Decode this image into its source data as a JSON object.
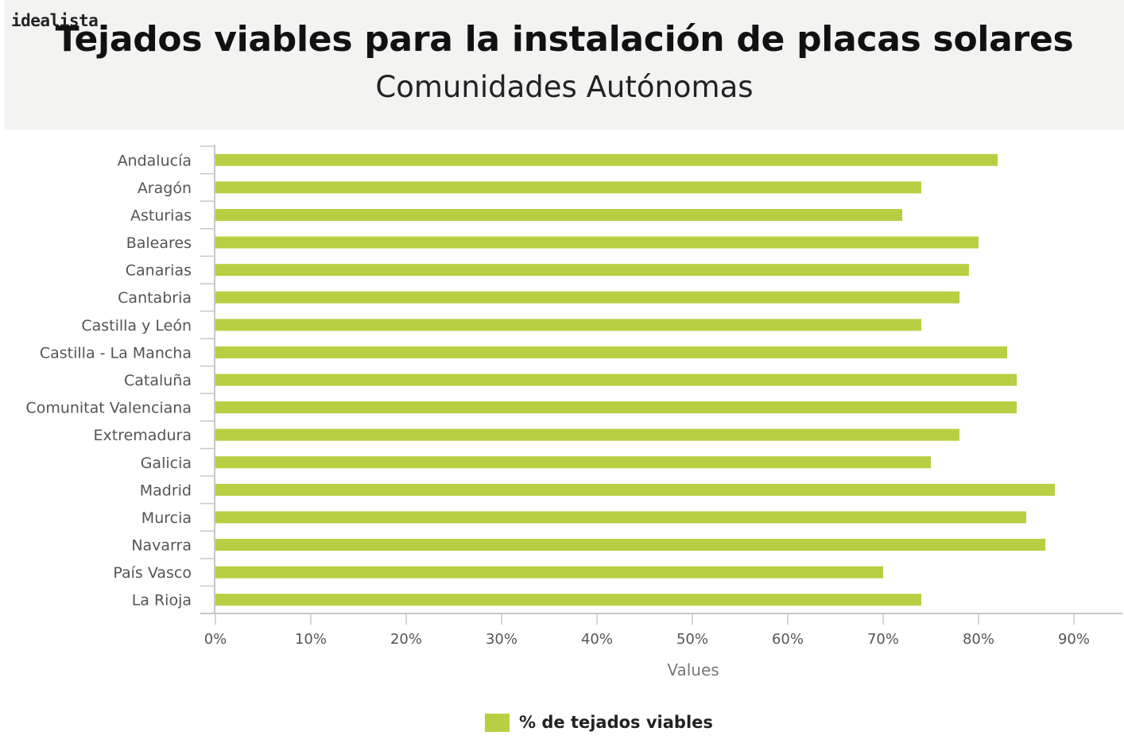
{
  "header": {
    "logo": "idealista",
    "title": "Tejados viables para la instalación de placas solares",
    "subtitle": "Comunidades Autónomas"
  },
  "colors": {
    "bar": "#b8cf43",
    "axis": "#c8c8c8",
    "label": "#555555",
    "header_bg": "#f3f3f1"
  },
  "chart_data": {
    "type": "bar",
    "orientation": "horizontal",
    "categories": [
      "Andalucía",
      "Aragón",
      "Asturias",
      "Baleares",
      "Canarias",
      "Cantabria",
      "Castilla y León",
      "Castilla - La Mancha",
      "Cataluña",
      "Comunitat Valenciana",
      "Extremadura",
      "Galicia",
      "Madrid",
      "Murcia",
      "Navarra",
      "País Vasco",
      "La Rioja"
    ],
    "series": [
      {
        "name": "% de tejados viables",
        "values": [
          82,
          74,
          72,
          80,
          79,
          78,
          74,
          83,
          84,
          84,
          78,
          75,
          88,
          85,
          87,
          70,
          74
        ]
      }
    ],
    "xlabel": "Values",
    "xlim": [
      0,
      95
    ],
    "ticks": [
      "0%",
      "10%",
      "20%",
      "30%",
      "40%",
      "50%",
      "60%",
      "70%",
      "80%",
      "90%"
    ],
    "tick_values": [
      0,
      10,
      20,
      30,
      40,
      50,
      60,
      70,
      80,
      90
    ],
    "grid": false,
    "legend_position": "bottom"
  }
}
